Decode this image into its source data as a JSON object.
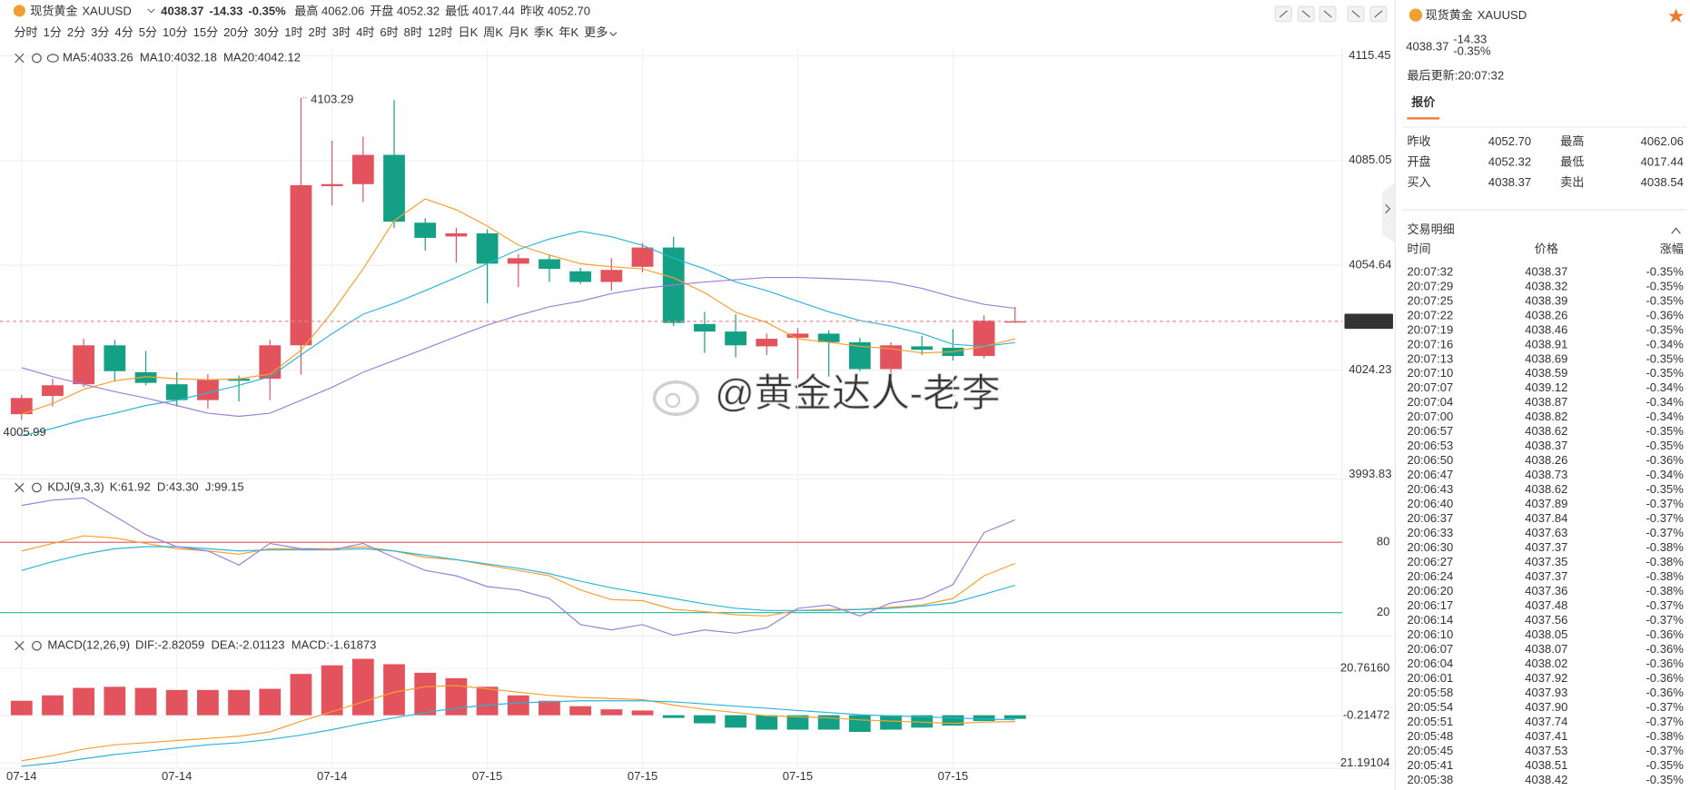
{
  "header": {
    "name": "现货黄金",
    "symbol": "XAUUSD",
    "price": "4038.37",
    "change": "-14.33",
    "change_pct": "-0.35%",
    "price_color": "#14a085",
    "stats": [
      {
        "label": "最高",
        "value": "4062.06",
        "color": "#e2535e"
      },
      {
        "label": "开盘",
        "value": "4052.32",
        "color": "#14a085"
      },
      {
        "label": "最低",
        "value": "4017.44",
        "color": "#14a085"
      },
      {
        "label": "昨收",
        "value": "4052.70",
        "color": "#555555"
      }
    ]
  },
  "periods": [
    "分时",
    "1分",
    "2分",
    "3分",
    "4分",
    "5分",
    "10分",
    "15分",
    "20分",
    "30分",
    "1时",
    "2时",
    "3时",
    "4时",
    "6时",
    "8时",
    "12时",
    "日K",
    "周K",
    "月K",
    "季K",
    "年K",
    "更多"
  ],
  "active_period_index": 10,
  "watermark": "@黄金达人-老李",
  "chart_data": [
    {
      "type": "candlestick",
      "categories": [
        "07-14",
        null,
        null,
        null,
        null,
        "07-14",
        null,
        null,
        null,
        null,
        "07-14",
        null,
        null,
        null,
        null,
        "07-15",
        null,
        null,
        null,
        null,
        "07-15",
        null,
        null,
        null,
        null,
        "07-15",
        null,
        null,
        null,
        null,
        "07-15",
        null,
        null
      ],
      "open": [
        4011.4,
        4016.7,
        4020.1,
        4031.4,
        4023.6,
        4020.1,
        4015.5,
        4021.7,
        4021.7,
        4031.4,
        4077.6,
        4078.2,
        4086.7,
        4067.0,
        4063.0,
        4063.9,
        4055.1,
        4056.4,
        4052.9,
        4049.8,
        4054.2,
        4059.8,
        4037.6,
        4035.4,
        4031.1,
        4033.6,
        4034.8,
        4032.3,
        4024.5,
        4031.1,
        4030.7,
        4028.3,
        4038.0
      ],
      "high": [
        4017.0,
        4021.7,
        4033.3,
        4033.0,
        4029.8,
        4023.6,
        4023.0,
        4022.6,
        4033.0,
        4103.29,
        4090.8,
        4092.0,
        4102.6,
        4068.3,
        4065.5,
        4065.1,
        4057.9,
        4057.6,
        4053.9,
        4056.7,
        4061.1,
        4062.9,
        4041.1,
        4040.4,
        4034.8,
        4036.4,
        4035.8,
        4033.6,
        4032.3,
        4034.2,
        4036.1,
        4040.1,
        4042.6
      ],
      "low": [
        4009.8,
        4013.6,
        4019.2,
        4020.8,
        4019.8,
        4013.6,
        4013.0,
        4015.1,
        4015.5,
        4022.9,
        4072.0,
        4073.0,
        4065.4,
        4058.9,
        4055.4,
        4043.6,
        4048.3,
        4049.8,
        4049.2,
        4047.3,
        4052.6,
        4037.0,
        4029.2,
        4027.9,
        4028.6,
        4021.7,
        4022.3,
        4023.9,
        4023.3,
        4028.6,
        4027.0,
        4027.6,
        4037.9
      ],
      "close": [
        4016.1,
        4019.8,
        4031.4,
        4023.9,
        4020.5,
        4015.5,
        4021.4,
        4021.1,
        4031.4,
        4077.9,
        4078.2,
        4086.7,
        4067.3,
        4062.6,
        4063.9,
        4055.1,
        4056.7,
        4053.6,
        4049.8,
        4053.3,
        4059.8,
        4037.9,
        4035.4,
        4031.4,
        4033.3,
        4034.8,
        4032.3,
        4024.5,
        4031.4,
        4030.1,
        4028.3,
        4038.6,
        4038.37
      ],
      "up_color": "#e2535e",
      "down_color": "#14a085",
      "series": [
        {
          "name": "MA5",
          "legend_label": "MA5:4033.26",
          "color": "#f5a030",
          "values": [
            4011.4,
            4014.5,
            4018.6,
            4021.1,
            4022.3,
            4021.7,
            4021.4,
            4021.7,
            4023.0,
            4030.0,
            4041.0,
            4053.6,
            4067.6,
            4073.9,
            4070.8,
            4066.0,
            4060.5,
            4057.6,
            4055.1,
            4054.2,
            4053.6,
            4051.0,
            4046.7,
            4041.0,
            4038.0,
            4033.3,
            4032.3,
            4031.1,
            4030.4,
            4029.2,
            4029.5,
            4031.1,
            4033.26
          ]
        },
        {
          "name": "MA10",
          "legend_label": "MA10:4032.18",
          "color": "#2bb5d8",
          "values": [
            4005.1,
            4007.3,
            4009.8,
            4011.7,
            4013.9,
            4015.45,
            4017.6,
            4019.8,
            4022.3,
            4028.6,
            4034.8,
            4040.45,
            4043.6,
            4047.3,
            4051.1,
            4055.1,
            4059.2,
            4062.3,
            4064.5,
            4062.95,
            4060.45,
            4056.7,
            4053.6,
            4049.8,
            4047.3,
            4044.2,
            4041.1,
            4038.6,
            4037.0,
            4034.8,
            4031.7,
            4031.1,
            4032.18
          ]
        },
        {
          "name": "MA20",
          "legend_label": "MA20:4042.12",
          "color": "#9a80d8",
          "values": [
            4024.9,
            4022.3,
            4020.1,
            4017.95,
            4016.1,
            4013.9,
            4011.7,
            4010.8,
            4011.7,
            4015.45,
            4019.2,
            4023.6,
            4027.0,
            4030.45,
            4033.9,
            4037.3,
            4040.1,
            4042.6,
            4044.2,
            4046.4,
            4047.95,
            4048.9,
            4049.8,
            4050.45,
            4051.1,
            4051.1,
            4050.8,
            4050.45,
            4049.8,
            4047.95,
            4045.45,
            4043.3,
            4042.12
          ]
        }
      ],
      "ylim": [
        3992.6,
        4117.6
      ],
      "yticks": [
        3993.83,
        4024.23,
        4054.64,
        4085.05,
        4115.45
      ],
      "grid": true,
      "last_price": 4038.37,
      "low_annotation": 4005.99
    },
    {
      "type": "line",
      "title": "KDJ(9,3,3)",
      "series": [
        {
          "name": "K",
          "legend_label": "K:61.92",
          "color": "#f5a030",
          "values": [
            72.6,
            79,
            85.5,
            83.7,
            79,
            74.5,
            72.6,
            69.8,
            74.5,
            74.5,
            74.5,
            76.3,
            72.6,
            67.1,
            65.2,
            60.6,
            56,
            51.4,
            39.4,
            31.1,
            30.2,
            22.8,
            20.9,
            18.2,
            17.2,
            21.8,
            22.8,
            22.8,
            24.6,
            26.5,
            32,
            51.4,
            61.92
          ]
        },
        {
          "name": "D",
          "legend_label": "D:43.30",
          "color": "#2bb5d8",
          "values": [
            56,
            63.4,
            69.8,
            74.5,
            76.3,
            76.3,
            74.5,
            72.6,
            73.5,
            73.5,
            73.5,
            74.5,
            72.6,
            68.9,
            65.2,
            61.5,
            57.8,
            53.2,
            46.8,
            41.2,
            36.6,
            32,
            27.4,
            23.7,
            21.8,
            21.8,
            21.8,
            22.8,
            23.7,
            25.5,
            28.3,
            35.7,
            43.3
          ]
        },
        {
          "name": "J",
          "legend_label": "J:99.15",
          "color": "#9a80d8",
          "values": [
            111.4,
            116,
            117.8,
            102.2,
            86.5,
            76.3,
            72.6,
            60.6,
            79,
            74.5,
            73.5,
            79,
            67.1,
            56,
            51.4,
            42.2,
            39.4,
            32,
            9.8,
            5.2,
            9.8,
            0.6,
            5.2,
            2.5,
            7.1,
            23.7,
            26.5,
            17.2,
            28.3,
            32,
            44,
            88.3,
            99.15
          ]
        }
      ],
      "ylim": [
        0,
        134
      ],
      "yticks": [
        20,
        80
      ],
      "reference_line_colors": [
        "#1fb89a",
        "#e2535e"
      ]
    },
    {
      "type": "macd",
      "title": "MACD(12,26,9)",
      "values": [
        6.4,
        8.8,
        12.1,
        12.6,
        12.1,
        11.2,
        11.2,
        11.2,
        11.7,
        18.3,
        22.1,
        25.0,
        22.6,
        18.8,
        16.4,
        12.6,
        8.8,
        6.4,
        4.0,
        2.6,
        2.1,
        -1.2,
        -3.6,
        -5.5,
        -6.4,
        -6.4,
        -6.4,
        -7.4,
        -6.4,
        -5.5,
        -4.6,
        -2.6,
        -1.61873
      ],
      "values_legend_label": "MACD:-1.61873",
      "values_legend_color": "#9a80d8",
      "up_color": "#e2535e",
      "down_color": "#14a085",
      "series": [
        {
          "name": "DIF",
          "legend_label": "DIF:-2.82059",
          "color": "#f5a030",
          "values": [
            -20.2,
            -17.9,
            -15.0,
            -13.1,
            -12.2,
            -11.2,
            -10.3,
            -9.3,
            -7.4,
            -2.6,
            1.6,
            5.9,
            10.2,
            12.6,
            13.1,
            11.7,
            10.2,
            8.8,
            7.9,
            7.4,
            6.9,
            4.5,
            2.6,
            1.2,
            -0.3,
            -0.7,
            -1.2,
            -2.1,
            -2.6,
            -3.1,
            -3.6,
            -3.1,
            -2.82059
          ]
        },
        {
          "name": "DEA",
          "legend_label": "DEA:-2.01123",
          "color": "#2bb5d8",
          "values": [
            -22.6,
            -21.2,
            -19.3,
            -17.4,
            -16.0,
            -14.5,
            -13.1,
            -12.2,
            -10.7,
            -8.8,
            -6.4,
            -3.6,
            -1.2,
            1.2,
            3.1,
            4.5,
            5.5,
            5.9,
            6.4,
            6.4,
            6.4,
            5.9,
            5.0,
            4.0,
            3.1,
            2.1,
            1.2,
            0.2,
            -0.3,
            -0.7,
            -1.2,
            -1.7,
            -2.01123
          ]
        }
      ],
      "ylim": [
        -23.6,
        26
      ],
      "yticks": [
        -21.19104,
        -0.21472,
        {
          "value": 20.7616,
          "label": "20.76160"
        }
      ],
      "grid": true
    }
  ],
  "panel": {
    "name": "现货黄金",
    "symbol": "XAUUSD",
    "price": "4038.37",
    "change": "-14.33",
    "change_pct": "-0.35%",
    "price_color": "#14a085",
    "updated": "最后更新:20:07:32",
    "tab": "报价",
    "quote": [
      {
        "label": "昨收",
        "value": "4052.70",
        "color": "#333333"
      },
      {
        "label": "最高",
        "value": "4062.06",
        "color": "#e2535e"
      },
      {
        "label": "开盘",
        "value": "4052.32",
        "color": "#14a085"
      },
      {
        "label": "最低",
        "value": "4017.44",
        "color": "#14a085"
      },
      {
        "label": "买入",
        "value": "4038.37",
        "color": "#333333"
      },
      {
        "label": "卖出",
        "value": "4038.54",
        "color": "#333333"
      }
    ],
    "trades": {
      "title": "交易明细",
      "columns": [
        "时间",
        "价格",
        "涨幅"
      ],
      "value_color": "#14a085",
      "rows": [
        [
          "20:07:32",
          "4038.37",
          "-0.35%"
        ],
        [
          "20:07:29",
          "4038.32",
          "-0.35%"
        ],
        [
          "20:07:25",
          "4038.39",
          "-0.35%"
        ],
        [
          "20:07:22",
          "4038.26",
          "-0.36%"
        ],
        [
          "20:07:19",
          "4038.46",
          "-0.35%"
        ],
        [
          "20:07:16",
          "4038.91",
          "-0.34%"
        ],
        [
          "20:07:13",
          "4038.69",
          "-0.35%"
        ],
        [
          "20:07:10",
          "4038.59",
          "-0.35%"
        ],
        [
          "20:07:07",
          "4039.12",
          "-0.34%"
        ],
        [
          "20:07:04",
          "4038.87",
          "-0.34%"
        ],
        [
          "20:07:00",
          "4038.82",
          "-0.34%"
        ],
        [
          "20:06:57",
          "4038.62",
          "-0.35%"
        ],
        [
          "20:06:53",
          "4038.37",
          "-0.35%"
        ],
        [
          "20:06:50",
          "4038.26",
          "-0.36%"
        ],
        [
          "20:06:47",
          "4038.73",
          "-0.34%"
        ],
        [
          "20:06:43",
          "4038.62",
          "-0.35%"
        ],
        [
          "20:06:40",
          "4037.89",
          "-0.37%"
        ],
        [
          "20:06:37",
          "4037.84",
          "-0.37%"
        ],
        [
          "20:06:33",
          "4037.63",
          "-0.37%"
        ],
        [
          "20:06:30",
          "4037.37",
          "-0.38%"
        ],
        [
          "20:06:27",
          "4037.35",
          "-0.38%"
        ],
        [
          "20:06:24",
          "4037.37",
          "-0.38%"
        ],
        [
          "20:06:20",
          "4037.36",
          "-0.38%"
        ],
        [
          "20:06:17",
          "4037.48",
          "-0.37%"
        ],
        [
          "20:06:14",
          "4037.56",
          "-0.37%"
        ],
        [
          "20:06:10",
          "4038.05",
          "-0.36%"
        ],
        [
          "20:06:07",
          "4038.07",
          "-0.36%"
        ],
        [
          "20:06:04",
          "4038.02",
          "-0.36%"
        ],
        [
          "20:06:01",
          "4037.92",
          "-0.36%"
        ],
        [
          "20:05:58",
          "4037.93",
          "-0.36%"
        ],
        [
          "20:05:54",
          "4037.90",
          "-0.37%"
        ],
        [
          "20:05:51",
          "4037.74",
          "-0.37%"
        ],
        [
          "20:05:48",
          "4037.41",
          "-0.38%"
        ],
        [
          "20:05:45",
          "4037.53",
          "-0.37%"
        ],
        [
          "20:05:41",
          "4038.51",
          "-0.35%"
        ],
        [
          "20:05:38",
          "4038.42",
          "-0.35%"
        ]
      ]
    }
  }
}
